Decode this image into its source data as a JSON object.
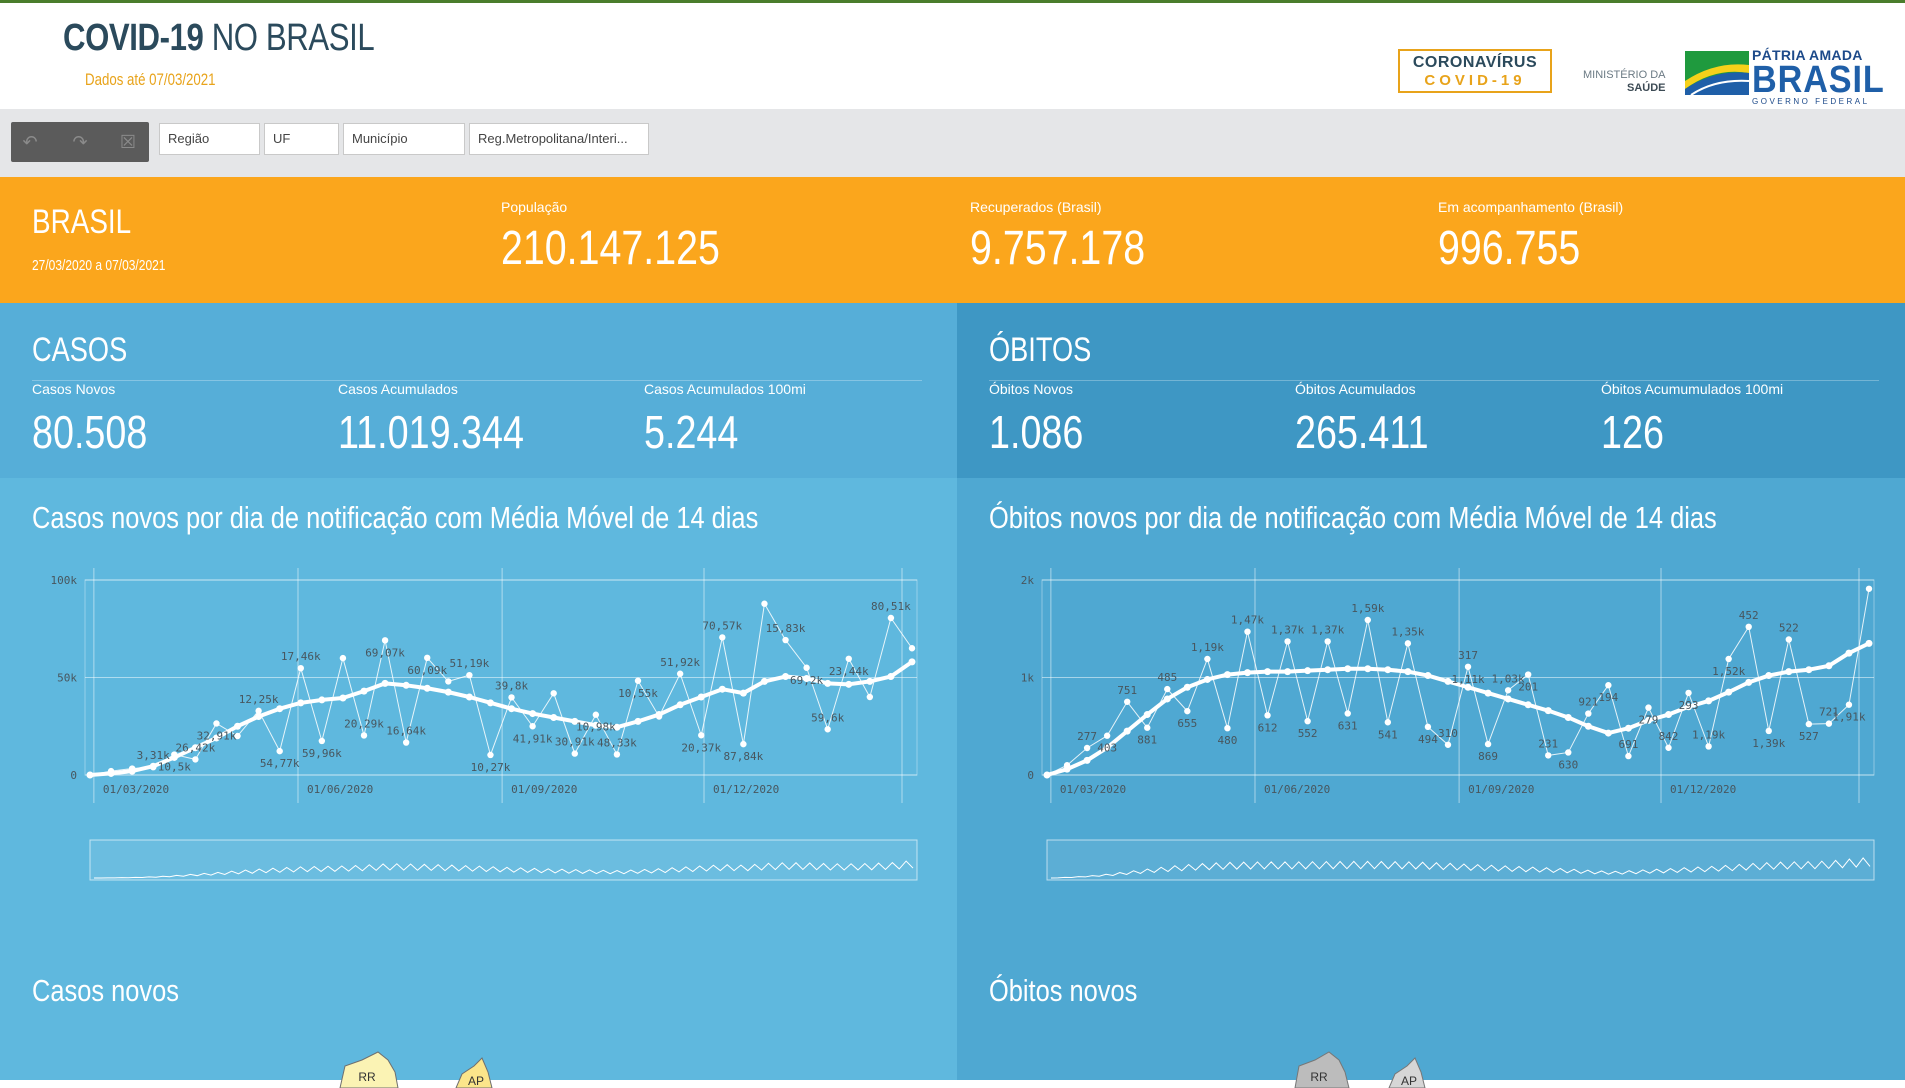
{
  "header": {
    "title_bold": "COVID-19",
    "title_light": "NO BRASIL",
    "subtitle": "Dados até 07/03/2021",
    "logo_covid_line1": "CORONAVÍRUS",
    "logo_covid_line2": "COVID-19",
    "ministerio_line1": "MINISTÉRIO DA",
    "ministerio_line2": "SAÚDE",
    "patria_line1": "PÁTRIA AMADA",
    "patria_line2": "BRASIL",
    "patria_line3": "GOVERNO FEDERAL"
  },
  "filters": {
    "toolbox_icons": [
      "undo-selection-icon",
      "redo-selection-icon",
      "clear-selection-icon"
    ],
    "regiao": "Região",
    "uf": "UF",
    "municipio": "Município",
    "reg_metro": "Reg.Metropolitana/Interi..."
  },
  "summary": {
    "region": "BRASIL",
    "period": "27/03/2020 a 07/03/2021",
    "populacao_label": "População",
    "populacao": "210.147.125",
    "recuperados_label": "Recuperados (Brasil)",
    "recuperados": "9.757.178",
    "acompanhamento_label": "Em acompanhamento (Brasil)",
    "acompanhamento": "996.755"
  },
  "casos": {
    "heading": "CASOS",
    "novos_label": "Casos Novos",
    "novos": "80.508",
    "acumulados_label": "Casos Acumulados",
    "acumulados": "11.019.344",
    "acum100_label": "Casos Acumulados 100mi",
    "acum100": "5.244",
    "chart_title": "Casos novos por dia de notificação com Média Móvel de 14 dias",
    "map_title": "Casos novos"
  },
  "obitos": {
    "heading": "ÓBITOS",
    "novos_label": "Óbitos Novos",
    "novos": "1.086",
    "acumulados_label": "Óbitos Acumulados",
    "acumulados": "265.411",
    "acum100_label": "Óbitos Acumumulados 100mi",
    "acum100": "126",
    "chart_title": "Óbitos novos por dia de notificação com Média Móvel de 14 dias",
    "map_title": "Óbitos novos"
  },
  "map_labels": {
    "casos": [
      "RR",
      "AP"
    ],
    "obitos": [
      "RR",
      "AP"
    ]
  },
  "colors": {
    "orange": "#fba61c",
    "casos_bg": "#5fb8de",
    "obitos_bg": "#4fa8d2",
    "accent": "#e8a31a"
  },
  "chart_data": [
    {
      "type": "line",
      "x_ticks": [
        "01/03/2020",
        "01/06/2020",
        "01/09/2020",
        "01/12/2020"
      ],
      "y_ticks": [
        "0",
        "50k",
        "100k"
      ],
      "ylim": [
        0,
        100000
      ],
      "x_range": [
        "2020-02-26",
        "2021-03-07"
      ],
      "grid": true,
      "series": [
        {
          "values": [
            0,
            2000,
            3310,
            4000,
            10500,
            8000,
            26420,
            20000,
            32910,
            12250,
            54770,
            17460,
            59960,
            20290,
            69070,
            16640,
            60090,
            48000,
            51190,
            10270,
            39800,
            25000,
            41910,
            10980,
            30910,
            10550,
            48330,
            30000,
            51920,
            20370,
            70570,
            15830,
            87840,
            69200,
            55000,
            23440,
            59600,
            40000,
            80510,
            65000
          ]
        },
        {
          "values": [
            0,
            800,
            2000,
            4500,
            9000,
            14000,
            19000,
            25000,
            30000,
            34000,
            37000,
            38500,
            39500,
            43000,
            47000,
            46000,
            44500,
            42500,
            40000,
            37000,
            34000,
            31500,
            29500,
            27500,
            25500,
            24500,
            27500,
            31000,
            36000,
            40000,
            44000,
            42000,
            48000,
            50500,
            49500,
            47000,
            46500,
            48000,
            50500,
            58000
          ]
        }
      ],
      "point_labels": [
        "3,31k",
        "10,5k",
        "26,42k",
        "32,91k",
        "12,25k",
        "54,77k",
        "17,46k",
        "59,96k",
        "20,29k",
        "69,07k",
        "16,64k",
        "60,09k",
        "51,19k",
        "10,27k",
        "39,8k",
        "41,91k",
        "30,91k",
        "10,98k",
        "48,33k",
        "10,55k",
        "51,92k",
        "20,37k",
        "70,57k",
        "87,84k",
        "15,83k",
        "69,2k",
        "59,6k",
        "23,44k",
        "80,51k"
      ]
    },
    {
      "type": "line",
      "x_ticks": [
        "01/03/2020",
        "01/06/2020",
        "01/09/2020",
        "01/12/2020"
      ],
      "y_ticks": [
        "0",
        "1k",
        "2k"
      ],
      "ylim": [
        0,
        2000
      ],
      "x_range": [
        "2020-02-26",
        "2021-03-07"
      ],
      "grid": true,
      "series": [
        {
          "values": [
            0,
            100,
            277,
            403,
            751,
            485,
            881,
            655,
            1190,
            480,
            1470,
            612,
            1370,
            552,
            1370,
            631,
            1590,
            541,
            1350,
            494,
            310,
            1110,
            317,
            869,
            1030,
            201,
            231,
            630,
            921,
            194,
            691,
            279,
            842,
            293,
            1190,
            1520,
            452,
            1390,
            522,
            527,
            721,
            1910
          ]
        },
        {
          "values": [
            0,
            60,
            150,
            280,
            450,
            620,
            780,
            900,
            980,
            1030,
            1050,
            1060,
            1060,
            1070,
            1080,
            1090,
            1090,
            1080,
            1060,
            1020,
            960,
            900,
            840,
            780,
            720,
            660,
            590,
            500,
            430,
            480,
            560,
            620,
            700,
            760,
            850,
            950,
            1020,
            1060,
            1080,
            1120,
            1250,
            1350
          ]
        }
      ],
      "point_labels": [
        "277",
        "403",
        "751",
        "881",
        "485",
        "655",
        "1,19k",
        "480",
        "1,47k",
        "612",
        "1,37k",
        "552",
        "1,37k",
        "631",
        "1,59k",
        "541",
        "1,35k",
        "494",
        "310",
        "1,11k",
        "317",
        "869",
        "1,03k",
        "201",
        "231",
        "630",
        "921",
        "194",
        "691",
        "279",
        "842",
        "293",
        "1,19k",
        "1,52k",
        "452",
        "1,39k",
        "522",
        "527",
        "721",
        "1,91k"
      ]
    }
  ]
}
